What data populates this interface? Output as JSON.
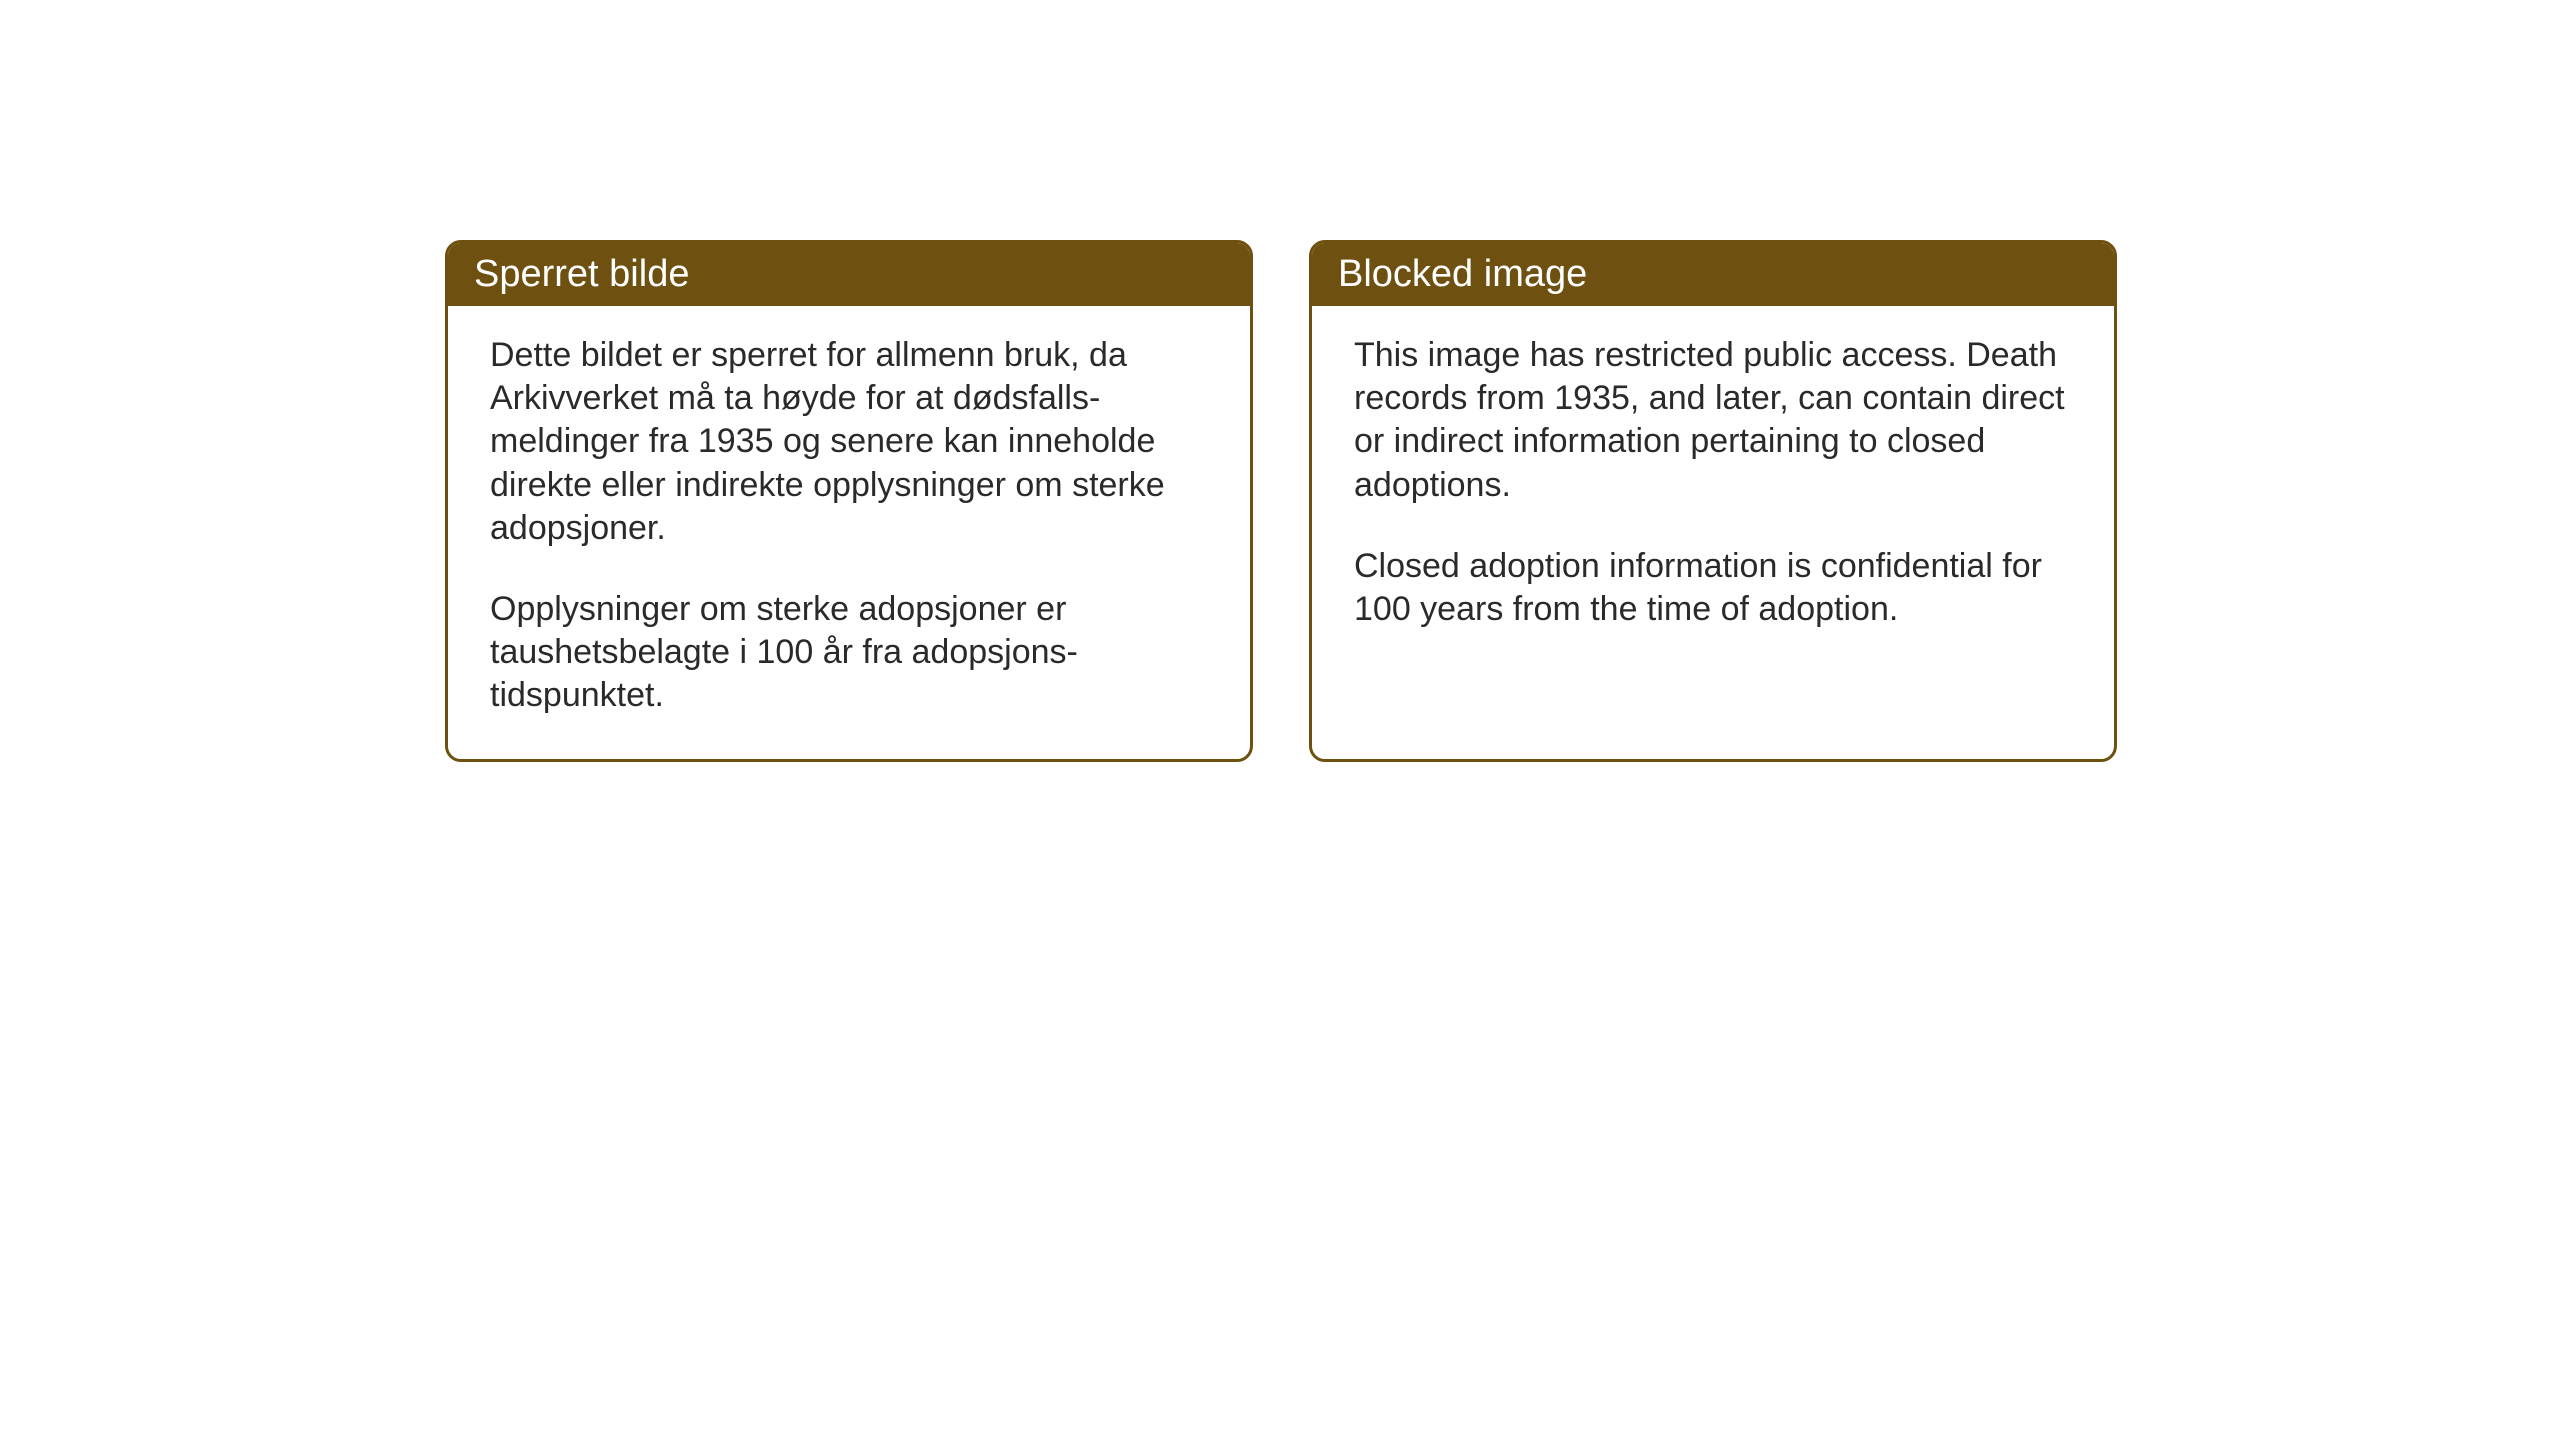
{
  "boxes": {
    "norwegian": {
      "title": "Sperret bilde",
      "paragraph1": "Dette bildet er sperret for allmenn bruk, da Arkivverket må ta høyde for at dødsfalls-meldinger fra 1935 og senere kan inneholde direkte eller indirekte opplysninger om sterke adopsjoner.",
      "paragraph2": "Opplysninger om sterke adopsjoner er taushetsbelagte i 100 år fra adopsjons-tidspunktet."
    },
    "english": {
      "title": "Blocked image",
      "paragraph1": "This image has restricted public access. Death records from 1935, and later, can contain direct or indirect information pertaining to closed adoptions.",
      "paragraph2": "Closed adoption information is confidential for 100 years from the time of adoption."
    }
  },
  "styling": {
    "header_background": "#6e5110",
    "header_text_color": "#ffffff",
    "border_color": "#6e5110",
    "body_text_color": "#2a2a2a",
    "background_color": "#ffffff",
    "border_radius": 16,
    "border_width": 3,
    "title_fontsize": 38,
    "body_fontsize": 34
  }
}
